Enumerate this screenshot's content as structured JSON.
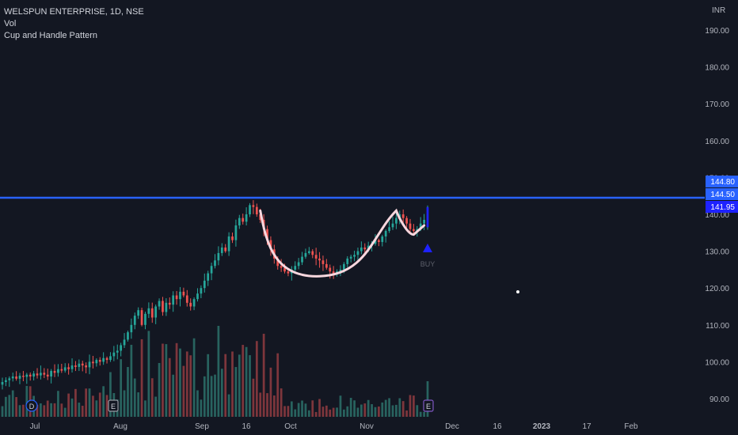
{
  "header": {
    "symbol_line": "WELSPUN ENTERPRISE, 1D, NSE",
    "indicator_1": "Vol",
    "indicator_2": "Cup and Handle Pattern"
  },
  "colors": {
    "background": "#131722",
    "up": "#26a69a",
    "down": "#ef5350",
    "up_volume": "#2b6b66",
    "down_volume": "#8b3a3f",
    "resistance_line": "#2962ff",
    "cup_curve": "#f8d7de",
    "buy_marker": "#1e22ff",
    "axis_text": "#b2b5be"
  },
  "chart_data": {
    "type": "candlestick",
    "currency_label": "INR",
    "y_axis": {
      "range": [
        85,
        198
      ],
      "ticks": [
        "190.00",
        "180.00",
        "170.00",
        "160.00",
        "150.00",
        "140.00",
        "130.00",
        "120.00",
        "110.00",
        "100.00",
        "90.00"
      ]
    },
    "x_axis": {
      "ticks": [
        "Jul",
        "Aug",
        "Sep",
        "16",
        "Oct",
        "Nov",
        "Dec",
        "16",
        "2023",
        "17",
        "Feb"
      ]
    },
    "price_labels": [
      {
        "value": 144.8,
        "text": "144.80",
        "color": "#2962ff"
      },
      {
        "value": 144.5,
        "text": "144.50",
        "color": "#2962ff"
      },
      {
        "value": 141.95,
        "text": "141.95",
        "color": "#1e22ff"
      }
    ],
    "resistance_level": 144.5,
    "buy_signal": {
      "label": "BUY",
      "price": 132
    },
    "event_markers": [
      "D",
      "E",
      "E"
    ],
    "series_close": [
      94.5,
      95.0,
      95.5,
      96.0,
      95.4,
      96.2,
      95.9,
      96.5,
      96.0,
      96.8,
      96.3,
      97.0,
      96.5,
      96.0,
      97.5,
      97.0,
      98.0,
      97.6,
      98.5,
      98.0,
      99.0,
      98.6,
      99.5,
      99.0,
      98.5,
      100.0,
      99.6,
      100.5,
      100.0,
      101.0,
      100.5,
      101.5,
      102.5,
      103.0,
      104.5,
      106.0,
      108.0,
      110.0,
      112.5,
      114.0,
      110.0,
      113.0,
      114.5,
      112.0,
      115.0,
      116.5,
      113.5,
      116.0,
      115.5,
      118.0,
      117.0,
      119.0,
      118.0,
      116.0,
      115.0,
      117.0,
      118.5,
      120.0,
      122.0,
      124.0,
      126.0,
      127.5,
      129.5,
      131.0,
      130.0,
      134.0,
      133.0,
      137.0,
      139.0,
      138.0,
      140.0,
      142.5,
      142.0,
      140.0,
      138.5,
      136.0,
      133.0,
      130.5,
      128.0,
      126.0,
      125.5,
      124.5,
      124.0,
      125.0,
      126.0,
      127.0,
      128.5,
      129.5,
      130.0,
      129.0,
      128.0,
      127.5,
      126.5,
      125.5,
      124.5,
      124.0,
      124.5,
      125.0,
      126.5,
      128.0,
      128.5,
      129.0,
      130.0,
      131.0,
      130.5,
      131.5,
      132.0,
      133.0,
      132.5,
      134.0,
      135.5,
      136.5,
      137.5,
      139.0,
      140.0,
      139.0,
      137.5,
      136.0,
      135.5,
      136.0,
      137.5,
      138.5,
      141.95
    ],
    "series_open": [
      93.8,
      94.5,
      95.0,
      95.5,
      96.0,
      95.4,
      96.2,
      95.9,
      96.5,
      96.0,
      96.8,
      96.3,
      97.0,
      96.5,
      96.0,
      97.5,
      97.0,
      98.0,
      97.6,
      98.5,
      98.0,
      99.0,
      98.6,
      99.5,
      99.0,
      98.5,
      100.0,
      99.6,
      100.5,
      100.0,
      101.0,
      100.5,
      101.5,
      102.5,
      103.0,
      104.5,
      106.0,
      108.0,
      110.0,
      112.5,
      114.0,
      110.0,
      113.0,
      114.5,
      112.0,
      115.0,
      116.5,
      113.5,
      116.0,
      115.5,
      118.0,
      117.0,
      119.0,
      118.0,
      116.0,
      115.0,
      117.0,
      118.5,
      120.0,
      122.0,
      124.0,
      126.0,
      127.5,
      129.5,
      131.0,
      130.0,
      134.0,
      133.0,
      137.0,
      139.0,
      138.0,
      140.0,
      142.5,
      142.0,
      140.0,
      138.5,
      136.0,
      133.0,
      130.5,
      128.0,
      126.0,
      125.5,
      124.5,
      124.0,
      125.0,
      126.0,
      127.0,
      128.5,
      129.5,
      130.0,
      129.0,
      128.0,
      127.5,
      126.5,
      125.5,
      124.5,
      124.0,
      124.5,
      125.0,
      126.5,
      128.0,
      128.5,
      129.0,
      130.0,
      131.0,
      130.5,
      131.5,
      132.0,
      133.0,
      132.5,
      134.0,
      135.5,
      136.5,
      137.5,
      139.0,
      140.0,
      139.0,
      137.5,
      136.0,
      135.5,
      136.0,
      137.5,
      136.5
    ]
  }
}
